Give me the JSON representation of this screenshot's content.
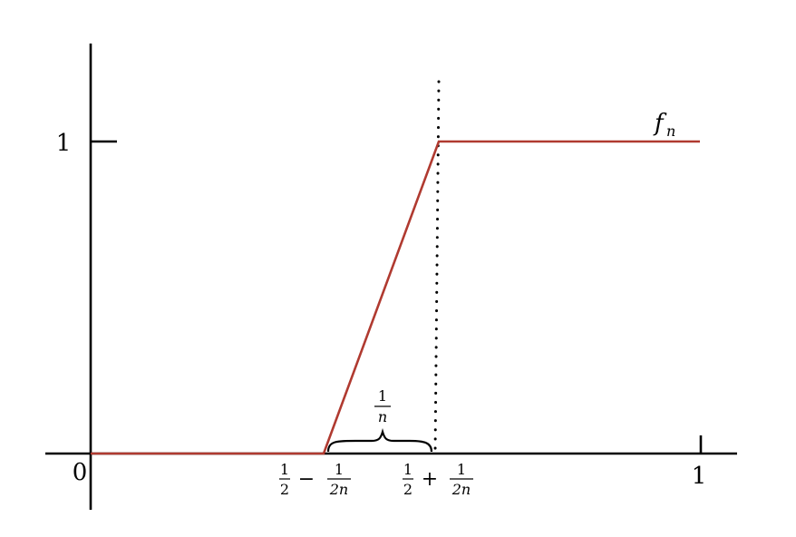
{
  "chart_data": {
    "type": "line",
    "series": [
      {
        "name": "f_n",
        "color": "#b03a30",
        "points": [
          {
            "x": 0,
            "y": 0
          },
          {
            "x": "1/2 - 1/(2n)",
            "y": 0
          },
          {
            "x": "1/2 + 1/(2n)",
            "y": 1
          },
          {
            "x": 1,
            "y": 1
          }
        ]
      }
    ],
    "series_label": {
      "base": "f",
      "subscript": "n"
    },
    "x_ticks": {
      "origin": "0",
      "one": "1",
      "left": {
        "num": "1",
        "den": "2",
        "op": "−",
        "num2": "1",
        "den2": "2n"
      },
      "right": {
        "num": "1",
        "den": "2",
        "op": "+",
        "num2": "1",
        "den2": "2n"
      }
    },
    "y_ticks": {
      "one": "1"
    },
    "brace_label": {
      "num": "1",
      "den": "n"
    },
    "guide_line": {
      "x": "1/2 + 1/(2n)",
      "style": "dotted"
    },
    "xlim": [
      0,
      1
    ],
    "ylim": [
      0,
      1
    ],
    "grid": false
  }
}
